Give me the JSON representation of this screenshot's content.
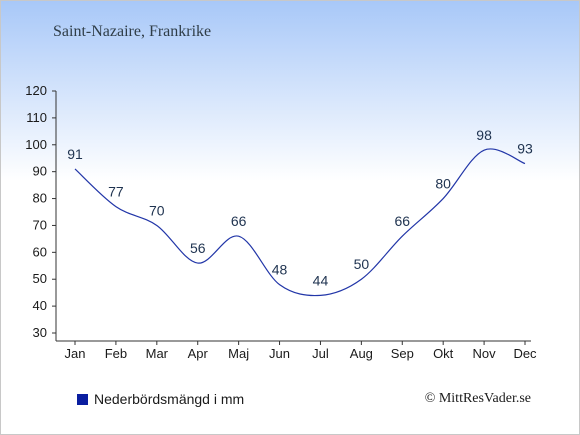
{
  "header": {
    "title": "Saint-Nazaire, Frankrike"
  },
  "chart_data": {
    "type": "line",
    "categories": [
      "Jan",
      "Feb",
      "Mar",
      "Apr",
      "Maj",
      "Jun",
      "Jul",
      "Aug",
      "Sep",
      "Okt",
      "Nov",
      "Dec"
    ],
    "series": [
      {
        "name": "Nederbördsmängd i mm",
        "values": [
          91,
          77,
          70,
          56,
          66,
          48,
          44,
          50,
          66,
          80,
          98,
          93
        ],
        "color": "#2236a8"
      }
    ],
    "y_ticks": [
      30,
      40,
      50,
      60,
      70,
      80,
      90,
      100,
      110,
      120
    ],
    "ylim": [
      30,
      120
    ],
    "grid": false,
    "legend_position": "bottom-left",
    "line_color": "#2236a8",
    "label_color": "#1f3350"
  },
  "legend": {
    "label": "Nederbördsmängd i mm",
    "color": "#0a1ea0"
  },
  "footer": {
    "credit": "© MittResVader.se"
  }
}
